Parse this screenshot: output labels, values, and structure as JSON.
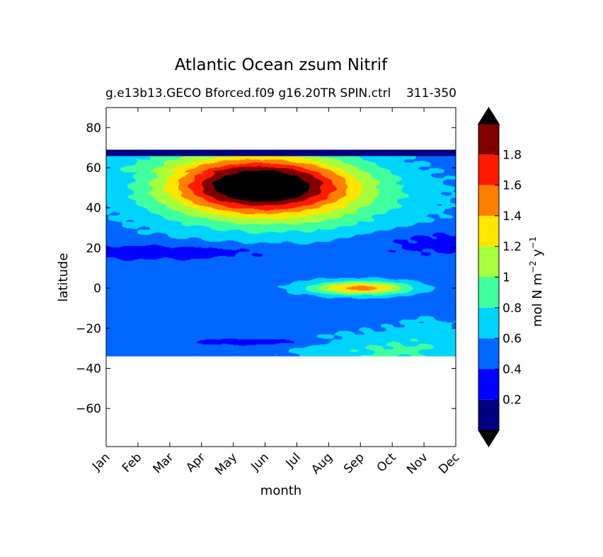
{
  "chart_data": {
    "type": "heatmap",
    "title": "Atlantic Ocean zsum Nitrif",
    "subtitle_left": "g.e13b13.GECO Bforced.f09 g16.20TR SPIN.ctrl",
    "subtitle_right": "311-350",
    "xlabel": "month",
    "ylabel": "latitude",
    "x_ticks": [
      "Jan",
      "Feb",
      "Mar",
      "Apr",
      "May",
      "Jun",
      "Jul",
      "Aug",
      "Sep",
      "Oct",
      "Nov",
      "Dec"
    ],
    "xlim": [
      0,
      11
    ],
    "ylim": [
      -79,
      90
    ],
    "y_ticks": [
      80,
      60,
      40,
      20,
      0,
      -20,
      -40,
      -60
    ],
    "y_tick_labels": [
      "80",
      "60",
      "40",
      "20",
      "0",
      "−20",
      "−40",
      "−60"
    ],
    "data_lat_range": [
      -34,
      69
    ],
    "colorbar": {
      "label_main": "mol N m",
      "label_sup1": "−2",
      "label_mid": " y",
      "label_sup2": "−1",
      "levels": [
        0,
        0.2,
        0.4,
        0.6,
        0.8,
        1.0,
        1.2,
        1.4,
        1.6,
        1.8,
        2.0
      ],
      "tick_values": [
        0.2,
        0.4,
        0.6,
        0.8,
        1.0,
        1.2,
        1.4,
        1.6,
        1.8
      ],
      "tick_labels": [
        "0.2",
        "0.4",
        "0.6",
        "0.8",
        "1",
        "1.2",
        "1.4",
        "1.6",
        "1.8"
      ],
      "colors": [
        "#000080",
        "#0000ff",
        "#0066ff",
        "#00d4ff",
        "#40ff9f",
        "#a6ff3d",
        "#ffe600",
        "#ff7f00",
        "#ff1a00",
        "#800000"
      ],
      "extend_low_color": "#000000",
      "extend_high_color": "#000000",
      "saturated_color": "#000000"
    },
    "features": [
      {
        "desc": "base band",
        "level": 0.5,
        "lat": [
          -34,
          66
        ]
      },
      {
        "desc": "north subtropical gyre bloom",
        "peak": 2.0,
        "month_center": 4.8,
        "lat_center": 53
      },
      {
        "desc": "equatorial maximum",
        "peak": 1.5,
        "month_center": 8.0,
        "lat_center": 0
      },
      {
        "desc": "southern subtropical band",
        "peak": 0.85,
        "month_center": 9.0,
        "lat_center": -32
      }
    ]
  }
}
